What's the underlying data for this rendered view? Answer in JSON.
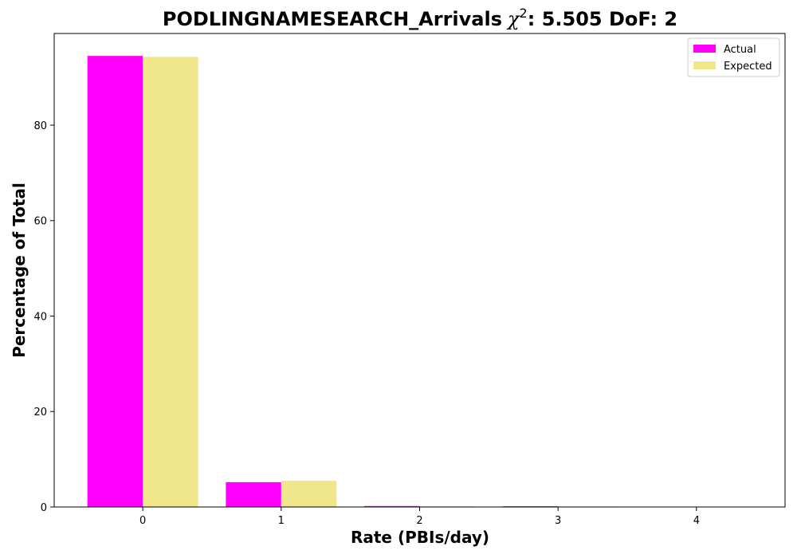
{
  "chart_data": {
    "type": "bar",
    "title": "PODLINGNAMESEARCH_Arrivals",
    "title_chi": "χ",
    "title_chi_exp": "2",
    "title_stats": ": 5.505 DoF: 2",
    "xlabel": "Rate (PBIs/day)",
    "ylabel": "Percentage of Total",
    "categories": [
      "0",
      "1",
      "2",
      "3",
      "4"
    ],
    "x": [
      0,
      1,
      2,
      3,
      4
    ],
    "xlim": [
      -0.64,
      4.64
    ],
    "ylim": [
      0,
      99.2
    ],
    "yticks": [
      0,
      20,
      40,
      60,
      80
    ],
    "series": [
      {
        "name": "Actual",
        "color": "#ff00ff",
        "values": [
          94.5,
          5.2,
          0.2,
          0.15,
          0
        ]
      },
      {
        "name": "Expected",
        "color": "#f0e68c",
        "values": [
          94.3,
          5.5,
          0.15,
          0.01,
          0
        ]
      }
    ],
    "legend_position": "top-right",
    "grid": false
  }
}
